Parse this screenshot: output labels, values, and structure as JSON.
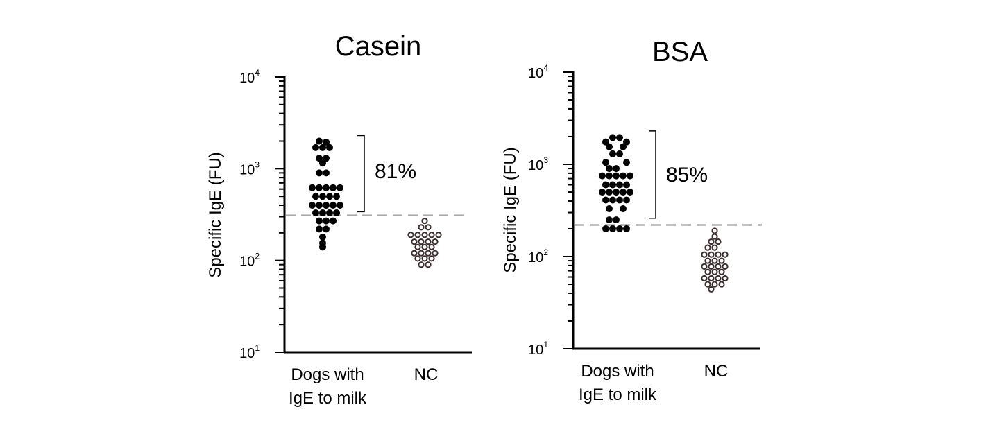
{
  "chart_data": [
    {
      "type": "scatter",
      "title": "Casein",
      "ylabel": "Specific IgE (FU)",
      "yscale": "log",
      "ylim": [
        10,
        10000
      ],
      "yticks": [
        {
          "base": "10",
          "exp": "1"
        },
        {
          "base": "10",
          "exp": "2"
        },
        {
          "base": "10",
          "exp": "3"
        },
        {
          "base": "10",
          "exp": "4"
        }
      ],
      "categories": [
        {
          "line1": "Dogs with",
          "line2": "IgE to milk"
        },
        {
          "line1": "NC",
          "line2": ""
        }
      ],
      "cutoff": 310,
      "annotation": {
        "text": "81%",
        "from": 340,
        "to": 2300
      },
      "series": [
        {
          "category": 0,
          "marker": "filled",
          "points": [
            [
              -1,
              2000
            ],
            [
              0,
              1950
            ],
            [
              -1.5,
              1700
            ],
            [
              -0.5,
              1700
            ],
            [
              0.5,
              1700
            ],
            [
              -1,
              1300
            ],
            [
              0,
              1300
            ],
            [
              -0.5,
              1150
            ],
            [
              -1,
              900
            ],
            [
              0,
              900
            ],
            [
              -2,
              620
            ],
            [
              -1,
              620
            ],
            [
              0,
              620
            ],
            [
              1,
              620
            ],
            [
              2,
              620
            ],
            [
              -1.5,
              500
            ],
            [
              -0.5,
              500
            ],
            [
              0.5,
              500
            ],
            [
              1.5,
              500
            ],
            [
              -2,
              400
            ],
            [
              -1,
              400
            ],
            [
              0,
              400
            ],
            [
              1,
              400
            ],
            [
              2,
              400
            ],
            [
              -1.5,
              330
            ],
            [
              -0.5,
              330
            ],
            [
              0.5,
              330
            ],
            [
              1.5,
              330
            ],
            [
              -1,
              270
            ],
            [
              0,
              270
            ],
            [
              1,
              270
            ],
            [
              -1,
              220
            ],
            [
              0,
              220
            ],
            [
              -0.5,
              180
            ],
            [
              -0.5,
              155
            ],
            [
              -0.5,
              140
            ]
          ]
        },
        {
          "category": 1,
          "marker": "open",
          "points": [
            [
              0,
              270
            ],
            [
              -0.5,
              230
            ],
            [
              0.5,
              230
            ],
            [
              -2,
              190
            ],
            [
              -1,
              190
            ],
            [
              0,
              190
            ],
            [
              1,
              190
            ],
            [
              2,
              190
            ],
            [
              -1.5,
              160
            ],
            [
              -0.5,
              160
            ],
            [
              0.5,
              160
            ],
            [
              1.5,
              160
            ],
            [
              -1,
              140
            ],
            [
              0,
              140
            ],
            [
              1,
              140
            ],
            [
              -1.5,
              120
            ],
            [
              -0.5,
              120
            ],
            [
              0.5,
              120
            ],
            [
              1.5,
              120
            ],
            [
              -1,
              105
            ],
            [
              0,
              105
            ],
            [
              1,
              105
            ],
            [
              -0.5,
              90
            ],
            [
              0.5,
              90
            ]
          ]
        }
      ]
    },
    {
      "type": "scatter",
      "title": "BSA",
      "ylabel": "Specific IgE (FU)",
      "yscale": "log",
      "ylim": [
        10,
        10000
      ],
      "yticks": [
        {
          "base": "10",
          "exp": "1"
        },
        {
          "base": "10",
          "exp": "2"
        },
        {
          "base": "10",
          "exp": "3"
        },
        {
          "base": "10",
          "exp": "4"
        }
      ],
      "categories": [
        {
          "line1": "Dogs with",
          "line2": "IgE to milk"
        },
        {
          "line1": "NC",
          "line2": ""
        }
      ],
      "cutoff": 220,
      "annotation": {
        "text": "85%",
        "from": 260,
        "to": 2300
      },
      "series": [
        {
          "category": 0,
          "marker": "filled",
          "points": [
            [
              -0.5,
              1950
            ],
            [
              0.5,
              1950
            ],
            [
              -1.5,
              1750
            ],
            [
              1.5,
              1750
            ],
            [
              -1,
              1550
            ],
            [
              1,
              1550
            ],
            [
              -0.5,
              1300
            ],
            [
              0.5,
              1300
            ],
            [
              -1.5,
              1050
            ],
            [
              1.5,
              1050
            ],
            [
              -1,
              900
            ],
            [
              0,
              900
            ],
            [
              -2,
              750
            ],
            [
              -1,
              750
            ],
            [
              0,
              750
            ],
            [
              1,
              750
            ],
            [
              2,
              750
            ],
            [
              -1.5,
              600
            ],
            [
              -0.5,
              600
            ],
            [
              0.5,
              600
            ],
            [
              1.5,
              600
            ],
            [
              -2,
              500
            ],
            [
              -1,
              500
            ],
            [
              0,
              500
            ],
            [
              1,
              500
            ],
            [
              2,
              500
            ],
            [
              -1.5,
              410
            ],
            [
              -0.5,
              410
            ],
            [
              0.5,
              410
            ],
            [
              1.5,
              410
            ],
            [
              -1,
              330
            ],
            [
              1,
              330
            ],
            [
              -1,
              250
            ],
            [
              0,
              250
            ],
            [
              -1.5,
              200
            ],
            [
              -0.5,
              200
            ],
            [
              0.5,
              200
            ],
            [
              1.5,
              200
            ]
          ]
        },
        {
          "category": 1,
          "marker": "open",
          "points": [
            [
              0,
              190
            ],
            [
              0,
              165
            ],
            [
              -0.5,
              145
            ],
            [
              0.5,
              145
            ],
            [
              -1,
              125
            ],
            [
              0,
              125
            ],
            [
              -1.5,
              105
            ],
            [
              -0.5,
              105
            ],
            [
              0.5,
              105
            ],
            [
              1.5,
              105
            ],
            [
              -1,
              90
            ],
            [
              0,
              90
            ],
            [
              1,
              90
            ],
            [
              -1.5,
              78
            ],
            [
              -0.5,
              78
            ],
            [
              0.5,
              78
            ],
            [
              1.5,
              78
            ],
            [
              -1,
              68
            ],
            [
              0,
              68
            ],
            [
              1,
              68
            ],
            [
              -1.5,
              58
            ],
            [
              -0.5,
              58
            ],
            [
              0.5,
              58
            ],
            [
              1.5,
              58
            ],
            [
              -1,
              50
            ],
            [
              0,
              50
            ],
            [
              1,
              50
            ],
            [
              -0.5,
              44
            ]
          ]
        }
      ]
    }
  ]
}
